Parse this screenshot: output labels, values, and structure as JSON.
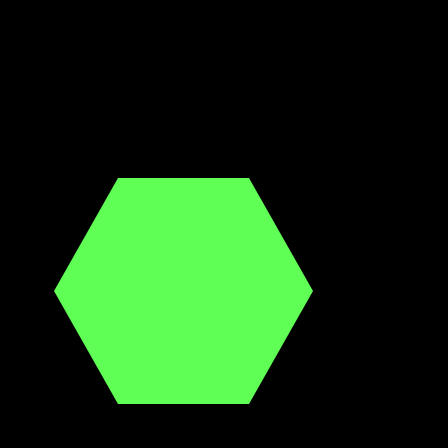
{
  "scene": {
    "background_color": "#000000",
    "shapes": [
      {
        "kind": "hexagon",
        "fill_color": "#5fff55"
      }
    ]
  }
}
